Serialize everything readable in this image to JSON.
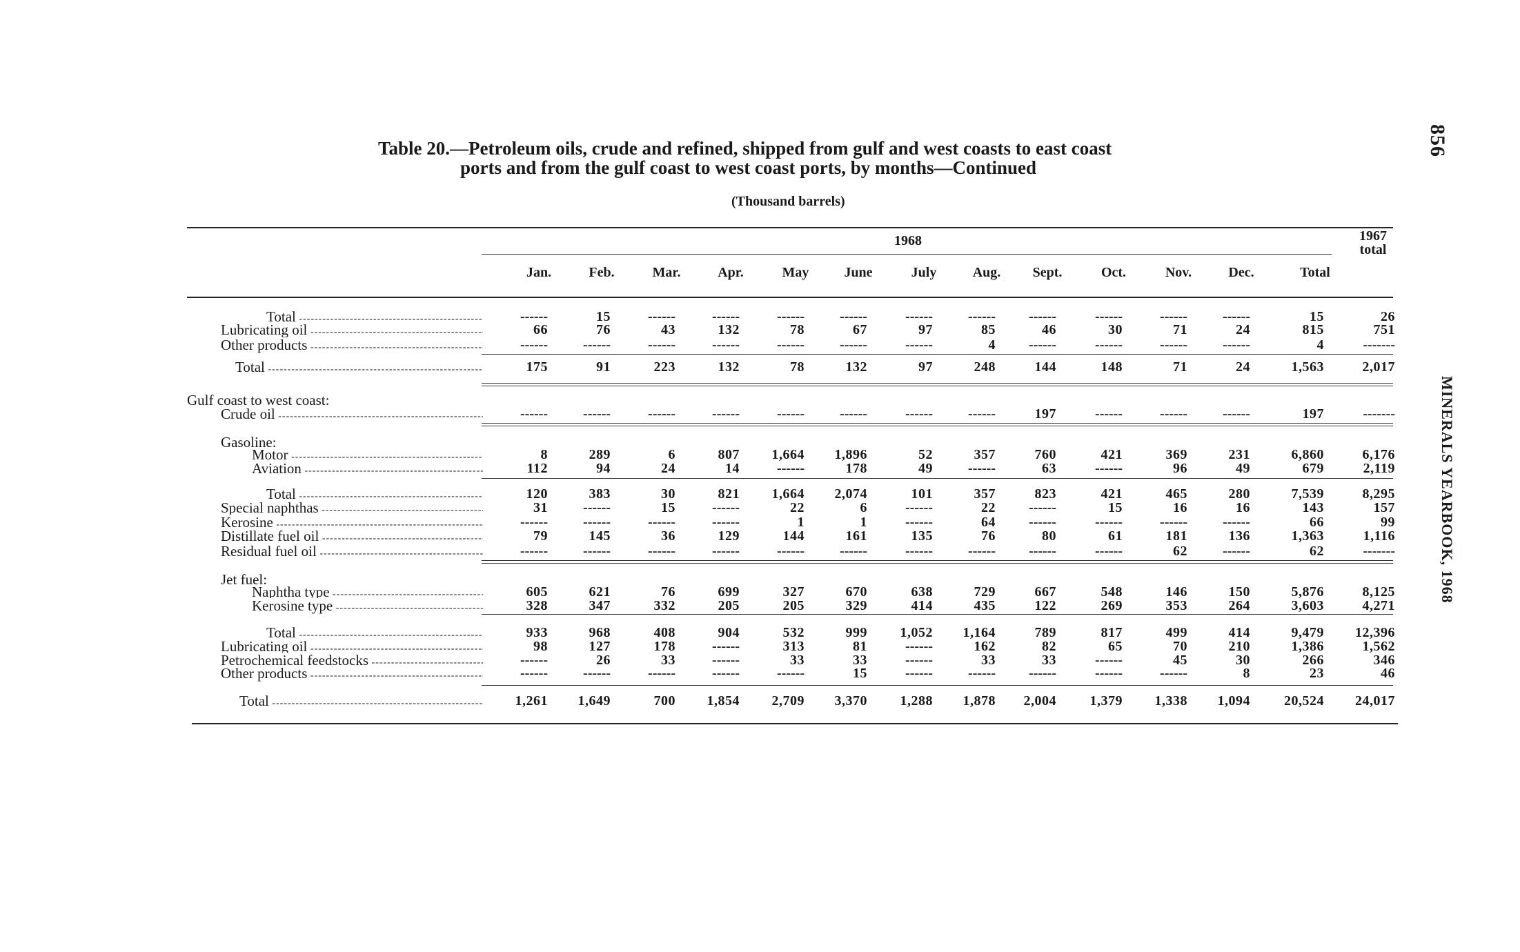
{
  "title_line1": "Table 20.—Petroleum oils, crude and refined, shipped from gulf and west coasts to east coast",
  "title_line2": "ports and from the gulf coast to west coast ports, by months—Continued",
  "units": "(Thousand barrels)",
  "page_number": "856",
  "running_head": "MINERALS YEARBOOK, 1968",
  "header": {
    "year_group": "1968",
    "prior_total": "1967 total",
    "columns": [
      "Jan.",
      "Feb.",
      "Mar.",
      "Apr.",
      "May",
      "June",
      "July",
      "Aug.",
      "Sept.",
      "Oct.",
      "Nov.",
      "Dec.",
      "Total"
    ]
  },
  "rows": [
    {
      "label": "Total",
      "indent": "total1",
      "values": [
        "------",
        "15",
        "------",
        "------",
        "------",
        "------",
        "------",
        "------",
        "------",
        "------",
        "------",
        "------",
        "15",
        "26"
      ]
    },
    {
      "label": "Lubricating oil",
      "indent": "l1",
      "values": [
        "66",
        "76",
        "43",
        "132",
        "78",
        "67",
        "97",
        "85",
        "46",
        "30",
        "71",
        "24",
        "815",
        "751"
      ]
    },
    {
      "label": "Other products",
      "indent": "l1",
      "values": [
        "------",
        "------",
        "------",
        "------",
        "------",
        "------",
        "------",
        "4",
        "------",
        "------",
        "------",
        "------",
        "4",
        "-------"
      ]
    },
    {
      "label": "Total",
      "indent": "total0",
      "values": [
        "175",
        "91",
        "223",
        "132",
        "78",
        "132",
        "97",
        "248",
        "144",
        "148",
        "71",
        "24",
        "1,563",
        "2,017"
      ]
    },
    {
      "label": "Gulf coast to west coast:",
      "indent": "l0",
      "values": []
    },
    {
      "label": "Crude oil",
      "indent": "l1",
      "values": [
        "------",
        "------",
        "------",
        "------",
        "------",
        "------",
        "------",
        "------",
        "197",
        "------",
        "------",
        "------",
        "197",
        "-------"
      ]
    },
    {
      "label": "Gasoline:",
      "indent": "l1",
      "values": []
    },
    {
      "label": "Motor",
      "indent": "l2",
      "values": [
        "8",
        "289",
        "6",
        "807",
        "1,664",
        "1,896",
        "52",
        "357",
        "760",
        "421",
        "369",
        "231",
        "6,860",
        "6,176"
      ]
    },
    {
      "label": "Aviation",
      "indent": "l2",
      "values": [
        "112",
        "94",
        "24",
        "14",
        "------",
        "178",
        "49",
        "------",
        "63",
        "------",
        "96",
        "49",
        "679",
        "2,119"
      ]
    },
    {
      "label": "Total",
      "indent": "total1",
      "values": [
        "120",
        "383",
        "30",
        "821",
        "1,664",
        "2,074",
        "101",
        "357",
        "823",
        "421",
        "465",
        "280",
        "7,539",
        "8,295"
      ]
    },
    {
      "label": "Special naphthas",
      "indent": "l1",
      "values": [
        "31",
        "------",
        "15",
        "------",
        "22",
        "6",
        "------",
        "22",
        "------",
        "15",
        "16",
        "16",
        "143",
        "157"
      ]
    },
    {
      "label": "Kerosine",
      "indent": "l1",
      "values": [
        "------",
        "------",
        "------",
        "------",
        "1",
        "1",
        "------",
        "64",
        "------",
        "------",
        "------",
        "------",
        "66",
        "99"
      ]
    },
    {
      "label": "Distillate fuel oil",
      "indent": "l1",
      "values": [
        "79",
        "145",
        "36",
        "129",
        "144",
        "161",
        "135",
        "76",
        "80",
        "61",
        "181",
        "136",
        "1,363",
        "1,116"
      ]
    },
    {
      "label": "Residual fuel oil",
      "indent": "l1",
      "values": [
        "------",
        "------",
        "------",
        "------",
        "------",
        "------",
        "------",
        "------",
        "------",
        "------",
        "62",
        "------",
        "62",
        "-------"
      ]
    },
    {
      "label": "Jet fuel:",
      "indent": "l1",
      "values": []
    },
    {
      "label": "Naphtha type",
      "indent": "l2",
      "values": [
        "605",
        "621",
        "76",
        "699",
        "327",
        "670",
        "638",
        "729",
        "667",
        "548",
        "146",
        "150",
        "5,876",
        "8,125"
      ]
    },
    {
      "label": "Kerosine type",
      "indent": "l2",
      "values": [
        "328",
        "347",
        "332",
        "205",
        "205",
        "329",
        "414",
        "435",
        "122",
        "269",
        "353",
        "264",
        "3,603",
        "4,271"
      ]
    },
    {
      "label": "Total",
      "indent": "total1",
      "values": [
        "933",
        "968",
        "408",
        "904",
        "532",
        "999",
        "1,052",
        "1,164",
        "789",
        "817",
        "499",
        "414",
        "9,479",
        "12,396"
      ]
    },
    {
      "label": "Lubricating oil",
      "indent": "l1",
      "values": [
        "98",
        "127",
        "178",
        "------",
        "313",
        "81",
        "------",
        "162",
        "82",
        "65",
        "70",
        "210",
        "1,386",
        "1,562"
      ]
    },
    {
      "label": "Petrochemical feedstocks",
      "indent": "l1",
      "values": [
        "------",
        "26",
        "33",
        "------",
        "33",
        "33",
        "------",
        "33",
        "33",
        "------",
        "45",
        "30",
        "266",
        "346"
      ]
    },
    {
      "label": "Other products",
      "indent": "l1",
      "values": [
        "------",
        "------",
        "------",
        "------",
        "------",
        "15",
        "------",
        "------",
        "------",
        "------",
        "------",
        "8",
        "23",
        "46"
      ]
    },
    {
      "label": "Total",
      "indent": "total0b",
      "values": [
        "1,261",
        "1,649",
        "700",
        "1,854",
        "2,709",
        "3,370",
        "1,288",
        "1,878",
        "2,004",
        "1,379",
        "1,338",
        "1,094",
        "20,524",
        "24,017"
      ]
    }
  ]
}
